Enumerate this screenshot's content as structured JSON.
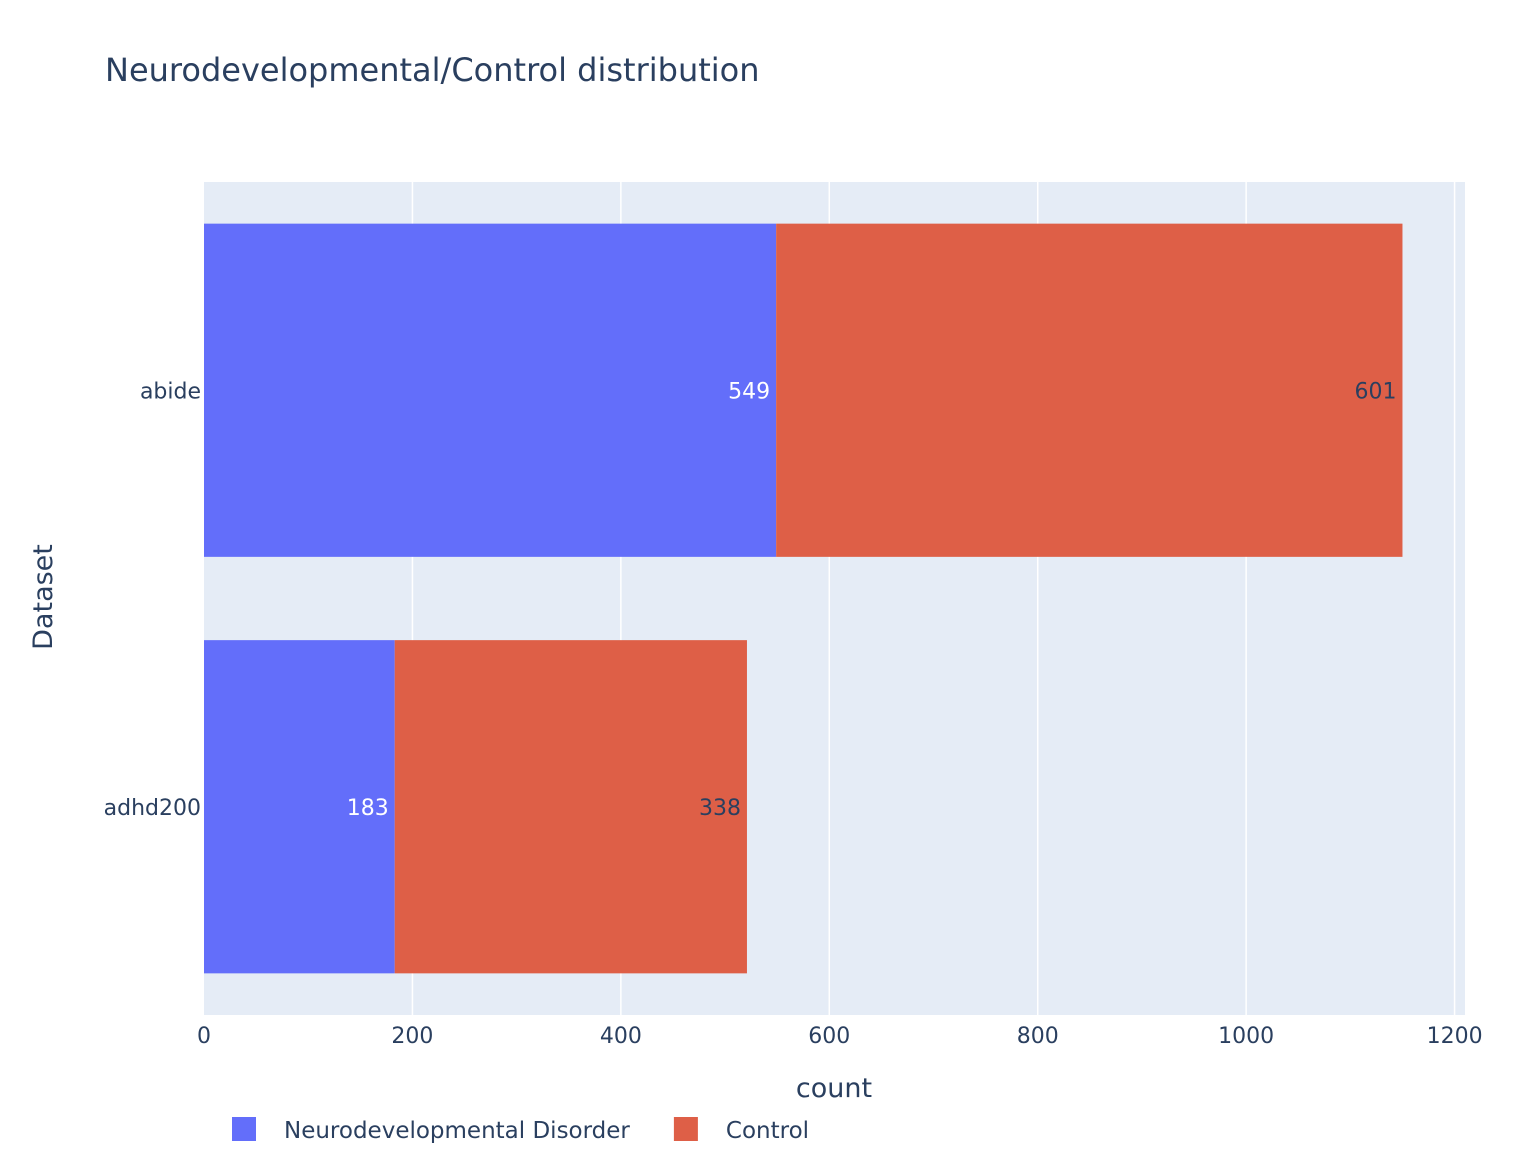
{
  "chart_data": {
    "type": "bar",
    "orientation": "horizontal",
    "barmode": "stack",
    "title": "Neurodevelopmental/Control distribution",
    "xlabel": "count",
    "ylabel": "Dataset",
    "categories": [
      "abide",
      "adhd200"
    ],
    "series": [
      {
        "name": "Neurodevelopmental Disorder",
        "values": [
          549,
          183
        ],
        "color": "#636efa",
        "label_color": "#ffffff"
      },
      {
        "name": "Control",
        "values": [
          601,
          338
        ],
        "color": "#de5f47",
        "label_color": "#2a3f5f"
      }
    ],
    "xlim": [
      0,
      1210
    ],
    "xticks": [
      0,
      200,
      400,
      600,
      800,
      1000,
      1200
    ],
    "grid": true,
    "legend_position": "bottom-left",
    "plot_background": "#e5ecf6",
    "grid_color": "#ffffff"
  }
}
